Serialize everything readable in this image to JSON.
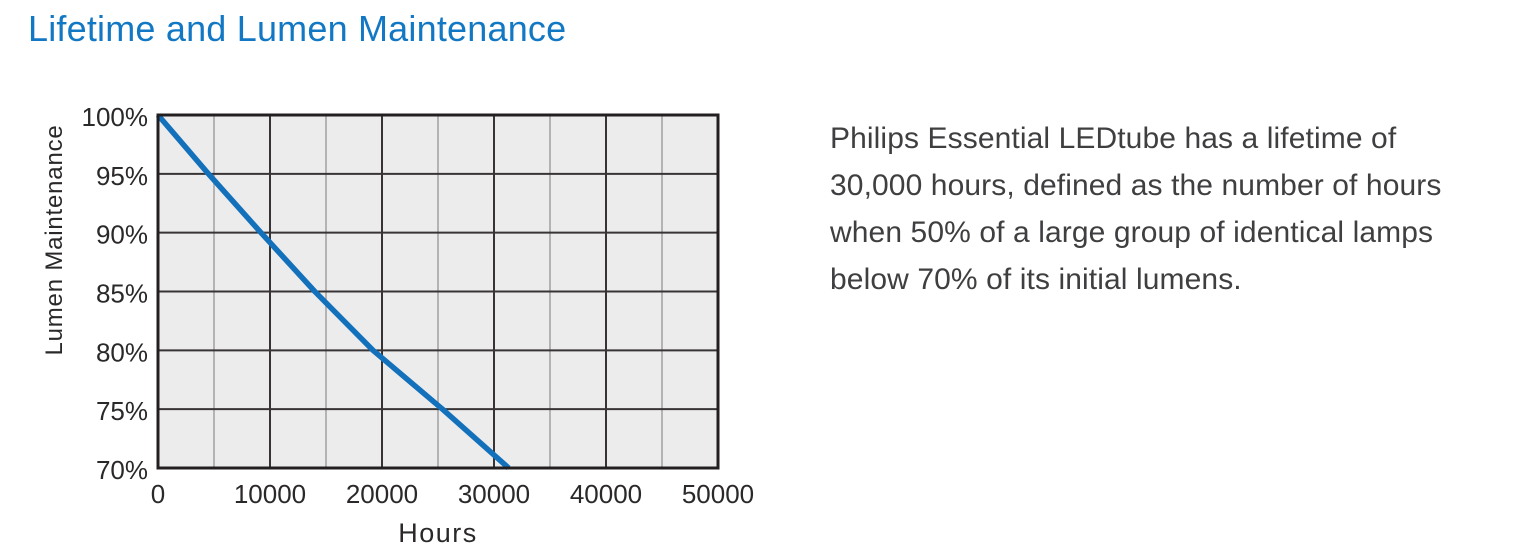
{
  "title": "Lifetime and Lumen Maintenance",
  "description": "Philips Essential LEDtube has a lifetime of\n30,000 hours, defined as the number of hours\nwhen 50% of a large group of identical lamps\nbelow 70% of its initial lumens.",
  "colors": {
    "title_blue": "#1278c4",
    "line_blue": "#1371bb",
    "body_text": "#3f3e40",
    "tick_text": "#2b2829",
    "axis_border": "#231f20",
    "grid_major": "#383436",
    "grid_minor": "#a5a3a4",
    "plot_bg": "#edecec",
    "page_bg": "#ffffff"
  },
  "chart_data": {
    "type": "line",
    "title": "",
    "xlabel": "Hours",
    "ylabel": "Lumen Maintenance",
    "xlim": [
      0,
      50000
    ],
    "ylim": [
      70,
      100
    ],
    "x_minor_step": 5000,
    "x_major_step": 10000,
    "y_grid_step": 5,
    "grid": true,
    "legend": false,
    "xticks": [
      {
        "v": 0,
        "label": "0"
      },
      {
        "v": 10000,
        "label": "10000"
      },
      {
        "v": 20000,
        "label": "20000"
      },
      {
        "v": 30000,
        "label": "30000"
      },
      {
        "v": 40000,
        "label": "40000"
      },
      {
        "v": 50000,
        "label": "50000"
      }
    ],
    "yticks": [
      {
        "v": 100,
        "label": "100%"
      },
      {
        "v": 95,
        "label": "95%"
      },
      {
        "v": 90,
        "label": "90%"
      },
      {
        "v": 85,
        "label": "85%"
      },
      {
        "v": 80,
        "label": "80%"
      },
      {
        "v": 75,
        "label": "75%"
      },
      {
        "v": 70,
        "label": "70%"
      }
    ],
    "series": [
      {
        "name": "Lumen maintenance",
        "x": [
          0,
          4500,
          9200,
          14000,
          19200,
          25400,
          31300
        ],
        "y": [
          100,
          95,
          90,
          85,
          80,
          75,
          70
        ]
      }
    ]
  }
}
